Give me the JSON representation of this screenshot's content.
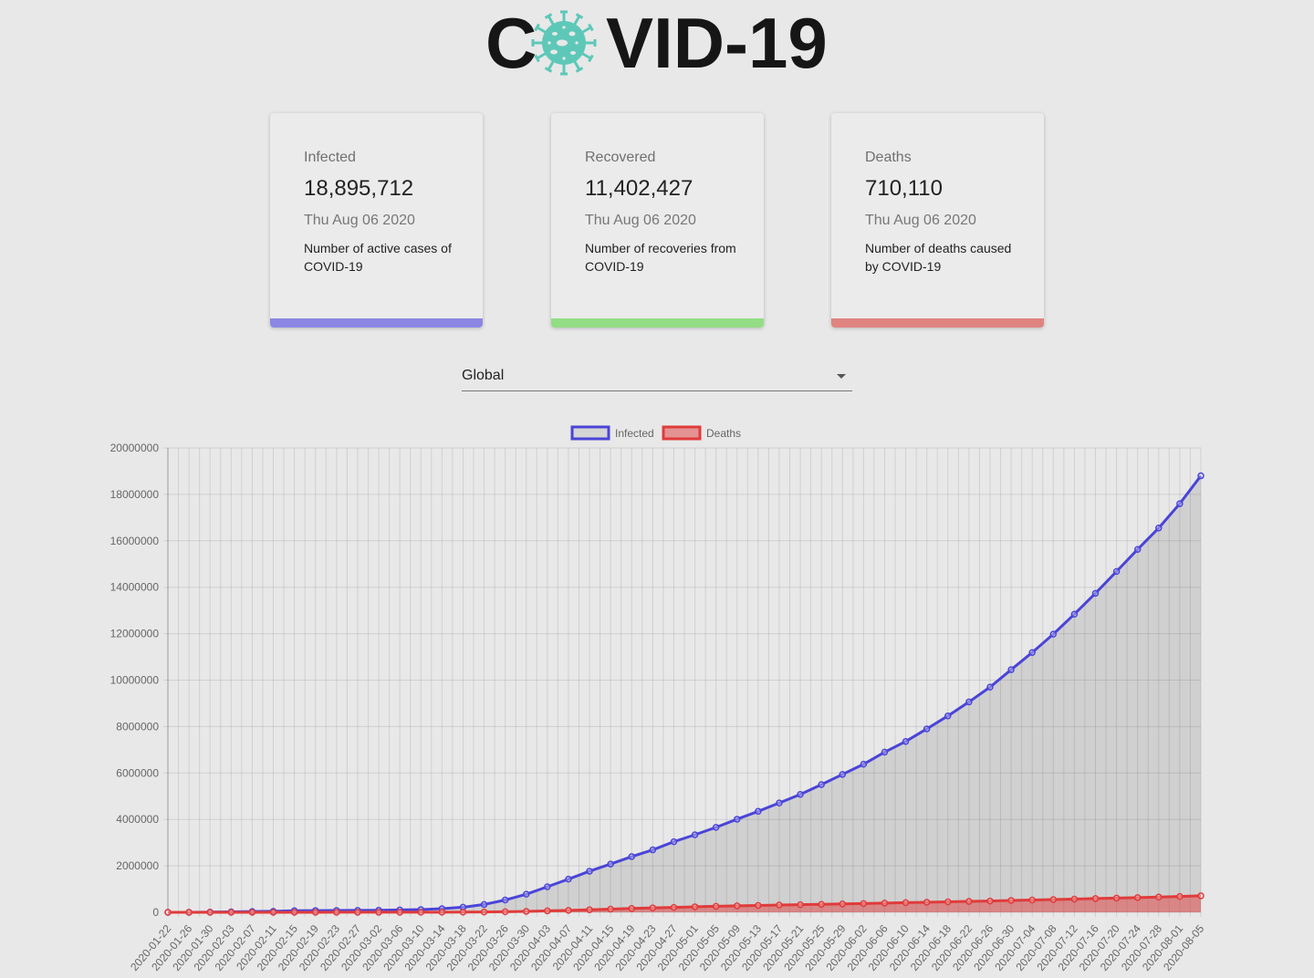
{
  "logo": {
    "text_start": "C",
    "text_end": "VID-19",
    "icon": "virus-icon",
    "icon_color": "#5ec8b8"
  },
  "cards": [
    {
      "label": "Infected",
      "value": "18,895,712",
      "date": "Thu Aug 06 2020",
      "description": "Number of active cases of COVID-19",
      "color": "#8b87e3"
    },
    {
      "label": "Recovered",
      "value": "11,402,427",
      "date": "Thu Aug 06 2020",
      "description": "Number of recoveries from COVID-19",
      "color": "#93dd84"
    },
    {
      "label": "Deaths",
      "value": "710,110",
      "date": "Thu Aug 06 2020",
      "description": "Number of deaths caused by COVID-19",
      "color": "#e08480"
    }
  ],
  "country_select": {
    "value": "Global"
  },
  "chart_data": {
    "type": "line",
    "legend_position": "top",
    "grid": true,
    "ylim": [
      0,
      20000000
    ],
    "y_ticks": [
      "0",
      "2000000",
      "4000000",
      "6000000",
      "8000000",
      "10000000",
      "12000000",
      "14000000",
      "16000000",
      "18000000",
      "20000000"
    ],
    "x": [
      "2020-01-22",
      "2020-01-26",
      "2020-01-30",
      "2020-02-03",
      "2020-02-07",
      "2020-02-11",
      "2020-02-15",
      "2020-02-19",
      "2020-02-23",
      "2020-02-27",
      "2020-03-02",
      "2020-03-06",
      "2020-03-10",
      "2020-03-14",
      "2020-03-18",
      "2020-03-22",
      "2020-03-26",
      "2020-03-30",
      "2020-04-03",
      "2020-04-07",
      "2020-04-11",
      "2020-04-15",
      "2020-04-19",
      "2020-04-23",
      "2020-04-27",
      "2020-05-01",
      "2020-05-05",
      "2020-05-09",
      "2020-05-13",
      "2020-05-17",
      "2020-05-21",
      "2020-05-25",
      "2020-05-29",
      "2020-06-02",
      "2020-06-06",
      "2020-06-10",
      "2020-06-14",
      "2020-06-18",
      "2020-06-22",
      "2020-06-26",
      "2020-06-30",
      "2020-07-04",
      "2020-07-08",
      "2020-07-12",
      "2020-07-16",
      "2020-07-20",
      "2020-07-24",
      "2020-07-28",
      "2020-08-01",
      "2020-08-05"
    ],
    "series": [
      {
        "name": "Infected",
        "color": "#4a44d8",
        "fill": "rgba(0,0,0,0.1)",
        "values": [
          600,
          2000,
          8000,
          20000,
          34000,
          45000,
          69000,
          76000,
          79000,
          83000,
          90000,
          101000,
          119000,
          157000,
          219000,
          337000,
          530000,
          780000,
          1100000,
          1430000,
          1770000,
          2080000,
          2400000,
          2690000,
          3040000,
          3340000,
          3660000,
          4010000,
          4350000,
          4710000,
          5080000,
          5500000,
          5940000,
          6380000,
          6900000,
          7360000,
          7900000,
          8460000,
          9060000,
          9700000,
          10450000,
          11190000,
          11980000,
          12840000,
          13740000,
          14680000,
          15630000,
          16550000,
          17600000,
          18800000
        ]
      },
      {
        "name": "Deaths",
        "color": "#e03b3b",
        "fill": "rgba(224,59,59,0.5)",
        "values": [
          17,
          60,
          170,
          430,
          720,
          1010,
          1520,
          2010,
          2460,
          2810,
          3070,
          3500,
          4300,
          5900,
          8900,
          14700,
          24100,
          40500,
          61500,
          84500,
          110000,
          138000,
          165000,
          190000,
          211000,
          238000,
          258000,
          278000,
          297000,
          315000,
          330000,
          345000,
          362000,
          379000,
          399000,
          417000,
          434000,
          451000,
          470000,
          487000,
          512000,
          530000,
          551000,
          571000,
          592000,
          612000,
          636000,
          657000,
          683000,
          710000
        ]
      }
    ]
  }
}
